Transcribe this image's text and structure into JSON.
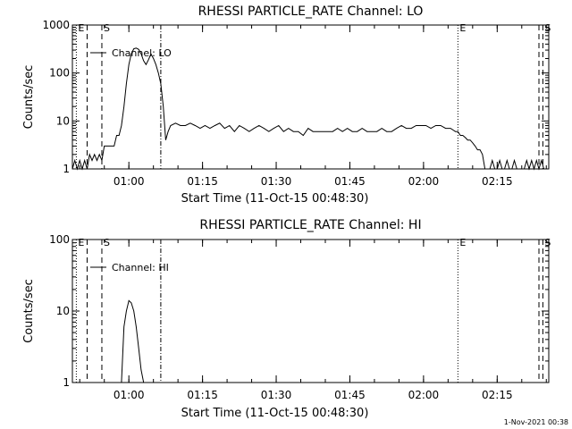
{
  "chart_data": [
    {
      "type": "line",
      "title": "RHESSI PARTICLE_RATE Channel: LO",
      "xlabel": "Start Time (11-Oct-15 00:48:30)",
      "ylabel": "Counts/sec",
      "x_unit": "minutes from 00:48:30",
      "xlim": [
        0,
        97
      ],
      "ylim": [
        1,
        1000
      ],
      "yscale": "log",
      "x_ticks": [
        {
          "x": 11.5,
          "label": "01:00"
        },
        {
          "x": 26.5,
          "label": "01:15"
        },
        {
          "x": 41.5,
          "label": "01:30"
        },
        {
          "x": 56.5,
          "label": "01:45"
        },
        {
          "x": 71.5,
          "label": "02:00"
        },
        {
          "x": 86.5,
          "label": "02:15"
        }
      ],
      "y_ticks": [
        {
          "y": 1,
          "label": "1"
        },
        {
          "y": 10,
          "label": "10"
        },
        {
          "y": 100,
          "label": "100"
        },
        {
          "y": 1000,
          "label": "1000"
        }
      ],
      "legend": {
        "label": "Channel: LO",
        "placement": "top-left"
      },
      "markers": [
        {
          "x": 0.8,
          "label": "E",
          "style": "dotted"
        },
        {
          "x": 3.0,
          "label": "",
          "style": "dashed"
        },
        {
          "x": 6.0,
          "label": "S",
          "style": "dashed"
        },
        {
          "x": 18.0,
          "label": "",
          "style": "dashdot"
        },
        {
          "x": 78.5,
          "label": "E",
          "style": "dotted"
        },
        {
          "x": 95.0,
          "label": "",
          "style": "dashed"
        },
        {
          "x": 95.8,
          "label": "S",
          "style": "dashed"
        }
      ],
      "series": [
        {
          "name": "Channel: LO",
          "x": [
            0,
            0.5,
            1,
            1.5,
            2,
            2.5,
            3,
            3.5,
            4,
            4.5,
            5,
            5.5,
            6,
            6.5,
            7,
            7.5,
            8,
            8.5,
            9,
            9.5,
            10,
            10.5,
            11,
            11.5,
            12,
            12.5,
            13,
            13.5,
            14,
            14.5,
            15,
            15.5,
            16,
            16.5,
            17,
            17.5,
            18,
            18.5,
            19,
            19.5,
            20,
            21,
            22,
            23,
            24,
            25,
            26,
            27,
            28,
            29,
            30,
            31,
            32,
            33,
            34,
            35,
            36,
            37,
            38,
            39,
            40,
            41,
            42,
            43,
            44,
            45,
            46,
            47,
            48,
            49,
            50,
            51,
            52,
            53,
            54,
            55,
            56,
            57,
            58,
            59,
            60,
            61,
            62,
            63,
            64,
            65,
            66,
            67,
            68,
            69,
            70,
            71,
            72,
            73,
            74,
            75,
            76,
            77,
            78,
            78.5,
            79,
            79.5,
            80,
            80.5,
            81,
            81.5,
            82,
            82.5,
            83,
            83.5,
            84,
            84.5,
            85,
            85.5,
            86,
            86.5,
            87,
            87.5,
            88,
            88.5,
            89,
            89.5,
            90,
            90.5,
            91,
            91.5,
            92,
            92.5,
            93,
            93.5,
            94,
            94.5,
            95,
            95.5,
            96
          ],
          "values": [
            1,
            1.5,
            1,
            1.5,
            1,
            1.5,
            1,
            2,
            1.5,
            2,
            1.5,
            2,
            1.5,
            3,
            3,
            3,
            3,
            3,
            5,
            5,
            8,
            20,
            60,
            150,
            250,
            320,
            330,
            310,
            250,
            180,
            150,
            190,
            250,
            200,
            150,
            100,
            60,
            20,
            4,
            6,
            8,
            9,
            8,
            8,
            9,
            8,
            7,
            8,
            7,
            8,
            9,
            7,
            8,
            6,
            8,
            7,
            6,
            7,
            8,
            7,
            6,
            7,
            8,
            6,
            7,
            6,
            6,
            5,
            7,
            6,
            6,
            6,
            6,
            6,
            7,
            6,
            7,
            6,
            6,
            7,
            6,
            6,
            6,
            7,
            6,
            6,
            7,
            8,
            7,
            7,
            8,
            8,
            8,
            7,
            8,
            8,
            7,
            7,
            6,
            6,
            5,
            5,
            4.5,
            4,
            4,
            3.5,
            3,
            2.5,
            2.5,
            2,
            1,
            1,
            1,
            1.5,
            1,
            1,
            1.5,
            1,
            1,
            1.5,
            1,
            1,
            1.5,
            1,
            1,
            1,
            1,
            1.5,
            1,
            1.5,
            1,
            1.5,
            1,
            1.5,
            1
          ]
        }
      ]
    },
    {
      "type": "line",
      "title": "RHESSI PARTICLE_RATE Channel: HI",
      "xlabel": "Start Time (11-Oct-15 00:48:30)",
      "ylabel": "Counts/sec",
      "x_unit": "minutes from 00:48:30",
      "xlim": [
        0,
        97
      ],
      "ylim": [
        1,
        100
      ],
      "yscale": "log",
      "x_ticks": [
        {
          "x": 11.5,
          "label": "01:00"
        },
        {
          "x": 26.5,
          "label": "01:15"
        },
        {
          "x": 41.5,
          "label": "01:30"
        },
        {
          "x": 56.5,
          "label": "01:45"
        },
        {
          "x": 71.5,
          "label": "02:00"
        },
        {
          "x": 86.5,
          "label": "02:15"
        }
      ],
      "y_ticks": [
        {
          "y": 1,
          "label": "1"
        },
        {
          "y": 10,
          "label": "10"
        },
        {
          "y": 100,
          "label": "100"
        }
      ],
      "legend": {
        "label": "Channel: HI",
        "placement": "top-left"
      },
      "markers": [
        {
          "x": 0.8,
          "label": "E",
          "style": "dotted"
        },
        {
          "x": 3.0,
          "label": "",
          "style": "dashed"
        },
        {
          "x": 6.0,
          "label": "S",
          "style": "dashed"
        },
        {
          "x": 18.0,
          "label": "",
          "style": "dashdot"
        },
        {
          "x": 78.5,
          "label": "E",
          "style": "dotted"
        },
        {
          "x": 95.0,
          "label": "",
          "style": "dashed"
        },
        {
          "x": 95.8,
          "label": "S",
          "style": "dashed"
        }
      ],
      "series": [
        {
          "name": "Channel: HI",
          "x": [
            10,
            10.5,
            11,
            11.5,
            12,
            12.5,
            13,
            13.5,
            14,
            14.5
          ],
          "values": [
            1,
            6,
            10,
            14,
            13,
            10,
            6,
            3,
            1.5,
            1
          ]
        }
      ]
    }
  ],
  "footer": {
    "timestamp": "1-Nov-2021 00:38"
  }
}
